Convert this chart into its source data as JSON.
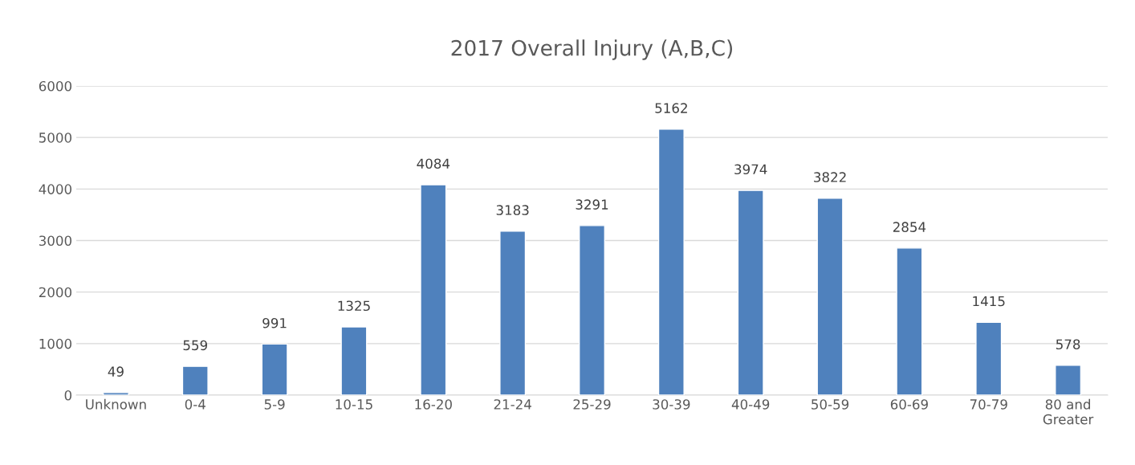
{
  "chart_data": {
    "type": "bar",
    "title": "2017 Overall Injury (A,B,C)",
    "categories": [
      "Unknown",
      "0-4",
      "5-9",
      "10-15",
      "16-20",
      "21-24",
      "25-29",
      "30-39",
      "40-49",
      "50-59",
      "60-69",
      "70-79",
      "80 and\nGreater"
    ],
    "values": [
      49,
      559,
      991,
      1325,
      4084,
      3183,
      3291,
      5162,
      3974,
      3822,
      2854,
      1415,
      578
    ],
    "color": "#4f81bd",
    "ylim": [
      0,
      6000
    ],
    "yticks": [
      0,
      1000,
      2000,
      3000,
      4000,
      5000,
      6000
    ],
    "grid": "y",
    "data_labels": true
  }
}
